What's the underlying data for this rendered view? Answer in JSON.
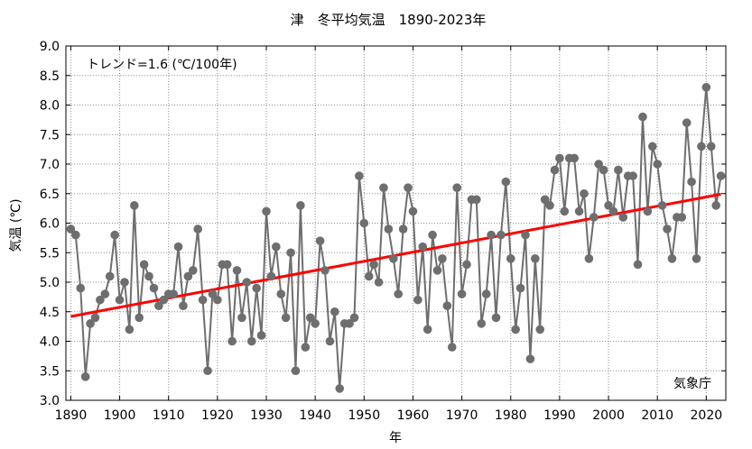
{
  "chart_data": {
    "type": "line",
    "title": "津　冬平均気温　1890-2023年",
    "xlabel": "年",
    "ylabel": "気温 (℃)",
    "annotation": "トレンド=1.6 (℃/100年)",
    "credit": "気象庁",
    "xlim": [
      1889,
      2024
    ],
    "ylim": [
      3.0,
      9.0
    ],
    "xticks": [
      1890,
      1900,
      1910,
      1920,
      1930,
      1940,
      1950,
      1960,
      1970,
      1980,
      1990,
      2000,
      2010,
      2020
    ],
    "yticks": [
      3.0,
      3.5,
      4.0,
      4.5,
      5.0,
      5.5,
      6.0,
      6.5,
      7.0,
      7.5,
      8.0,
      8.5,
      9.0
    ],
    "grid": true,
    "series": [
      {
        "color": "#6e6e6e",
        "x": [
          1890,
          1891,
          1892,
          1893,
          1894,
          1895,
          1896,
          1897,
          1898,
          1899,
          1900,
          1901,
          1902,
          1903,
          1904,
          1905,
          1906,
          1907,
          1908,
          1909,
          1910,
          1911,
          1912,
          1913,
          1914,
          1915,
          1916,
          1917,
          1918,
          1919,
          1920,
          1921,
          1922,
          1923,
          1924,
          1925,
          1926,
          1927,
          1928,
          1929,
          1930,
          1931,
          1932,
          1933,
          1934,
          1935,
          1936,
          1937,
          1938,
          1939,
          1940,
          1941,
          1942,
          1943,
          1944,
          1945,
          1946,
          1947,
          1948,
          1949,
          1950,
          1951,
          1952,
          1953,
          1954,
          1955,
          1956,
          1957,
          1958,
          1959,
          1960,
          1961,
          1962,
          1963,
          1964,
          1965,
          1966,
          1967,
          1968,
          1969,
          1970,
          1971,
          1972,
          1973,
          1974,
          1975,
          1976,
          1977,
          1978,
          1979,
          1980,
          1981,
          1982,
          1983,
          1984,
          1985,
          1986,
          1987,
          1988,
          1989,
          1990,
          1991,
          1992,
          1993,
          1994,
          1995,
          1996,
          1997,
          1998,
          1999,
          2000,
          2001,
          2002,
          2003,
          2004,
          2005,
          2006,
          2007,
          2008,
          2009,
          2010,
          2011,
          2012,
          2013,
          2014,
          2015,
          2016,
          2017,
          2018,
          2019,
          2020,
          2021,
          2022,
          2023
        ],
        "values": [
          5.9,
          5.8,
          4.9,
          3.4,
          4.3,
          4.4,
          4.7,
          4.8,
          5.1,
          5.8,
          4.7,
          5.0,
          4.2,
          6.3,
          4.4,
          5.3,
          5.1,
          4.9,
          4.6,
          4.7,
          4.8,
          4.8,
          5.6,
          4.6,
          5.1,
          5.2,
          5.9,
          4.7,
          3.5,
          4.8,
          4.7,
          5.3,
          5.3,
          4.0,
          5.2,
          4.4,
          5.0,
          4.0,
          4.9,
          4.1,
          6.2,
          5.1,
          5.6,
          4.8,
          4.4,
          5.5,
          3.5,
          6.3,
          3.9,
          4.4,
          4.3,
          5.7,
          5.2,
          4.0,
          4.5,
          3.2,
          4.3,
          4.3,
          4.4,
          6.8,
          6.0,
          5.1,
          5.3,
          5.0,
          6.6,
          5.9,
          5.4,
          4.8,
          5.9,
          6.6,
          6.2,
          4.7,
          5.6,
          4.2,
          5.8,
          5.2,
          5.4,
          4.6,
          3.9,
          6.6,
          4.8,
          5.3,
          6.4,
          6.4,
          4.3,
          4.8,
          5.8,
          4.4,
          5.8,
          6.7,
          5.4,
          4.2,
          4.9,
          5.8,
          3.7,
          5.4,
          4.2,
          6.4,
          6.3,
          6.9,
          7.1,
          6.2,
          7.1,
          7.1,
          6.2,
          6.5,
          5.4,
          6.1,
          7.0,
          6.9,
          6.3,
          6.2,
          6.9,
          6.1,
          6.8,
          6.8,
          5.3,
          7.8,
          6.2,
          7.3,
          7.0,
          6.3,
          5.9,
          5.4,
          6.1,
          6.1,
          7.7,
          6.7,
          5.4,
          7.3,
          8.3,
          7.3,
          6.3,
          6.8
        ]
      },
      {
        "color": "#ff0000",
        "x": [
          1890,
          2023
        ],
        "values": [
          4.42,
          6.49
        ]
      }
    ]
  }
}
